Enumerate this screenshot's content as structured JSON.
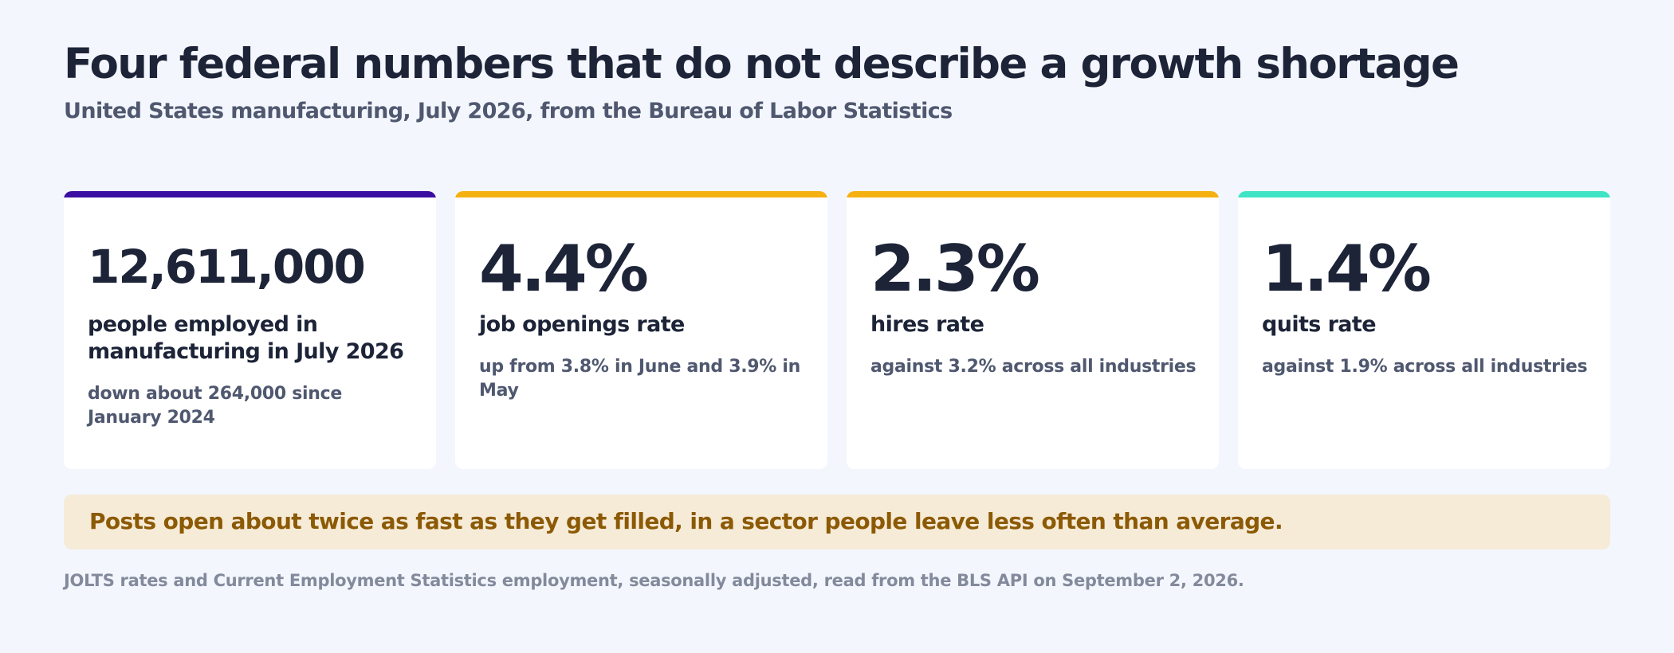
{
  "header": {
    "title": "Four federal numbers that do not describe a growth shortage",
    "subtitle": "United States manufacturing, July 2026, from the Bureau of Labor Statistics"
  },
  "cards": [
    {
      "value": "12,611,000",
      "label": "people employed in manufacturing in July 2026",
      "note": "down about 264,000 since January 2024",
      "accent_color": "#3a0ea0"
    },
    {
      "value": "4.4%",
      "label": "job openings rate",
      "note": "up from 3.8% in June and 3.9% in May",
      "accent_color": "#f4b111"
    },
    {
      "value": "2.3%",
      "label": "hires rate",
      "note": "against 3.2% across all industries",
      "accent_color": "#f4b111"
    },
    {
      "value": "1.4%",
      "label": "quits rate",
      "note": "against 1.9% across all industries",
      "accent_color": "#3fe4c4"
    }
  ],
  "banner": {
    "text": "Posts open about twice as fast as they get filled, in a sector people leave less often than average."
  },
  "footer": {
    "source": "JOLTS rates and Current Employment Statistics employment, seasonally adjusted, read from the BLS API on September 2, 2026."
  }
}
